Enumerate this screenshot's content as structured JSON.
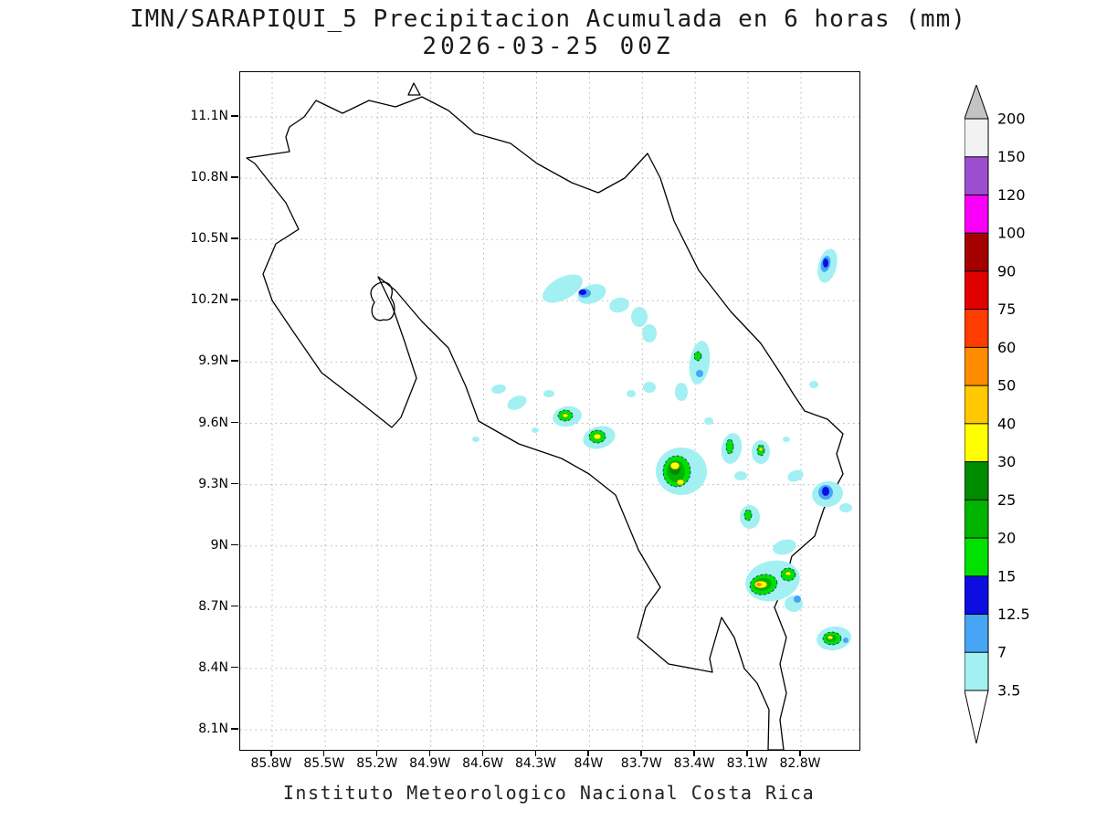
{
  "title": "IMN/SARAPIQUI_5 Precipitacion Acumulada en 6 horas (mm)",
  "subtitle": "2026-03-25 00Z",
  "footer": "Instituto Meteorologico Nacional Costa Rica",
  "map": {
    "region": "Costa Rica",
    "lat_ticks": [
      "11.1N",
      "10.8N",
      "10.5N",
      "10.2N",
      "9.9N",
      "9.6N",
      "9.3N",
      "9N",
      "8.7N",
      "8.4N",
      "8.1N"
    ],
    "lon_ticks": [
      "85.8W",
      "85.5W",
      "85.2W",
      "84.9W",
      "84.6W",
      "84.3W",
      "84W",
      "83.7W",
      "83.4W",
      "83.1W",
      "82.8W"
    ]
  },
  "colorbar": {
    "units": "mm",
    "labels_top_to_bottom": [
      "200",
      "150",
      "120",
      "100",
      "90",
      "75",
      "60",
      "50",
      "40",
      "30",
      "25",
      "20",
      "15",
      "12.5",
      "7",
      "3.5"
    ],
    "segment_colors_top_to_bottom": [
      "#f2f2f2",
      "#9b4fd0",
      "#fa00fa",
      "#a50000",
      "#e00000",
      "#ff3c00",
      "#ff8c00",
      "#ffc800",
      "#ffff00",
      "#008c00",
      "#00b400",
      "#00e100",
      "#0d0de1",
      "#46a5f5",
      "#a2f0f2"
    ],
    "top_arrow_color": "#c3c3c3",
    "bottom_arrow_color": "#ffffff"
  }
}
